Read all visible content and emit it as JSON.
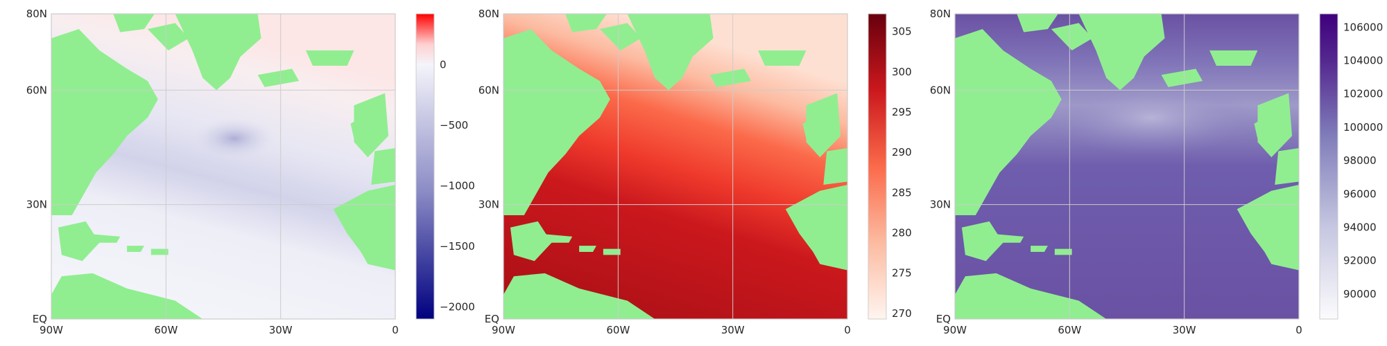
{
  "chart_data": [
    {
      "type": "heatmap",
      "title": "",
      "xlabel": "",
      "ylabel": "",
      "xlim": [
        -90,
        0
      ],
      "ylim": [
        0,
        80
      ],
      "x_ticks": [
        {
          "value": -90,
          "label": "90W"
        },
        {
          "value": -60,
          "label": "60W"
        },
        {
          "value": -30,
          "label": "30W"
        },
        {
          "value": 0,
          "label": "0"
        }
      ],
      "y_ticks": [
        {
          "value": 0,
          "label": "EQ"
        },
        {
          "value": 30,
          "label": "30N"
        },
        {
          "value": 60,
          "label": "60N"
        },
        {
          "value": 80,
          "label": "80N"
        }
      ],
      "grid": true,
      "land_color": "#90ee90",
      "colormap": "bwr",
      "colorbar": {
        "range": [
          -2100,
          420
        ],
        "ticks": [
          {
            "value": 0,
            "label": "0"
          },
          {
            "value": -500,
            "label": "−500"
          },
          {
            "value": -1000,
            "label": "−1000"
          },
          {
            "value": -1500,
            "label": "−1500"
          },
          {
            "value": -2000,
            "label": "−2000"
          }
        ]
      }
    },
    {
      "type": "heatmap",
      "title": "",
      "xlabel": "",
      "ylabel": "",
      "xlim": [
        -90,
        0
      ],
      "ylim": [
        0,
        80
      ],
      "x_ticks": [
        {
          "value": -90,
          "label": "90W"
        },
        {
          "value": -60,
          "label": "60W"
        },
        {
          "value": -30,
          "label": "30W"
        },
        {
          "value": 0,
          "label": "0"
        }
      ],
      "y_ticks": [
        {
          "value": 0,
          "label": "EQ"
        },
        {
          "value": 30,
          "label": "30N"
        },
        {
          "value": 60,
          "label": "60N"
        },
        {
          "value": 80,
          "label": "80N"
        }
      ],
      "grid": true,
      "land_color": "#90ee90",
      "colormap": "Reds",
      "colorbar": {
        "range": [
          269.3,
          307.2
        ],
        "ticks": [
          {
            "value": 305,
            "label": "305"
          },
          {
            "value": 300,
            "label": "300"
          },
          {
            "value": 295,
            "label": "295"
          },
          {
            "value": 290,
            "label": "290"
          },
          {
            "value": 285,
            "label": "285"
          },
          {
            "value": 280,
            "label": "280"
          },
          {
            "value": 275,
            "label": "275"
          },
          {
            "value": 270,
            "label": "270"
          }
        ]
      }
    },
    {
      "type": "heatmap",
      "title": "",
      "xlabel": "",
      "ylabel": "",
      "xlim": [
        -90,
        0
      ],
      "ylim": [
        0,
        80
      ],
      "x_ticks": [
        {
          "value": -90,
          "label": "90W"
        },
        {
          "value": -60,
          "label": "60W"
        },
        {
          "value": -30,
          "label": "30W"
        },
        {
          "value": 0,
          "label": "0"
        }
      ],
      "y_ticks": [
        {
          "value": 0,
          "label": "EQ"
        },
        {
          "value": 30,
          "label": "30N"
        },
        {
          "value": 60,
          "label": "60N"
        },
        {
          "value": 80,
          "label": "80N"
        }
      ],
      "grid": true,
      "land_color": "#90ee90",
      "colormap": "Purples",
      "colorbar": {
        "range": [
          88500,
          106800
        ],
        "ticks": [
          {
            "value": 106000,
            "label": "106000"
          },
          {
            "value": 104000,
            "label": "104000"
          },
          {
            "value": 102000,
            "label": "102000"
          },
          {
            "value": 100000,
            "label": "100000"
          },
          {
            "value": 98000,
            "label": "98000"
          },
          {
            "value": 96000,
            "label": "96000"
          },
          {
            "value": 94000,
            "label": "94000"
          },
          {
            "value": 92000,
            "label": "92000"
          },
          {
            "value": 90000,
            "label": "90000"
          }
        ]
      }
    }
  ]
}
